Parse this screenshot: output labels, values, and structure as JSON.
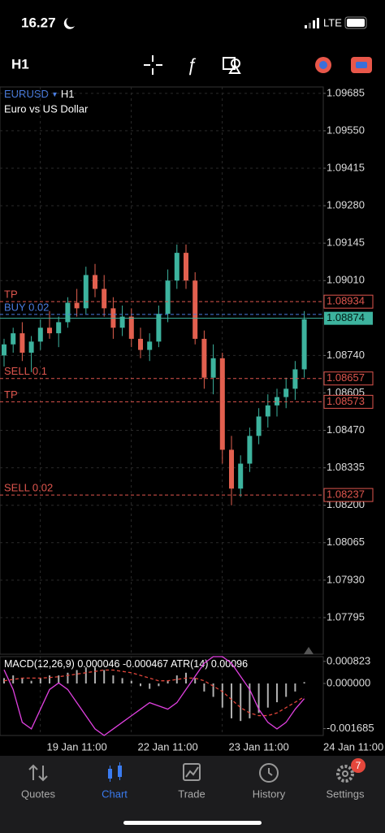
{
  "status": {
    "time": "16.27",
    "network": "LTE"
  },
  "toolbar": {
    "timeframe": "H1"
  },
  "chart_data": {
    "type": "candlestick",
    "symbol": "EURUSD",
    "timeframe": "H1",
    "description": "Euro vs US Dollar",
    "categories": [
      null,
      null,
      null,
      null,
      null,
      null,
      null,
      null,
      "19 Jan 11:00",
      null,
      null,
      null,
      null,
      null,
      null,
      null,
      null,
      null,
      "22 Jan 11:00",
      null,
      null,
      null,
      null,
      null,
      null,
      null,
      null,
      null,
      "23 Jan 11:00",
      null,
      null,
      null,
      null,
      null
    ],
    "x_end_label": "24 Jan 11:00",
    "open": [
      1.0874,
      1.0878,
      1.0882,
      1.0875,
      1.0879,
      1.0884,
      1.0882,
      1.0886,
      1.0893,
      1.0891,
      1.0903,
      1.0898,
      1.0891,
      1.0884,
      1.0888,
      1.088,
      1.0876,
      1.0879,
      1.0889,
      1.0901,
      1.0911,
      1.0901,
      1.088,
      1.0866,
      1.0873,
      1.084,
      1.0826,
      1.0835,
      1.0845,
      1.0852,
      1.0856,
      1.0859,
      1.0862,
      1.0869
    ],
    "high": [
      1.088,
      1.0884,
      1.0886,
      1.0881,
      1.0887,
      1.089,
      1.0888,
      1.0895,
      1.0898,
      1.0906,
      1.0907,
      1.0903,
      1.0895,
      1.0892,
      1.0891,
      1.0884,
      1.0882,
      1.0892,
      1.0905,
      1.0914,
      1.0914,
      1.0904,
      1.0883,
      1.0878,
      1.0875,
      1.0845,
      1.0838,
      1.0848,
      1.0855,
      1.086,
      1.0862,
      1.0866,
      1.0872,
      1.089
    ],
    "low": [
      1.087,
      1.0875,
      1.0872,
      1.0868,
      1.0876,
      1.088,
      1.0877,
      1.0884,
      1.0888,
      1.0889,
      1.0895,
      1.0888,
      1.088,
      1.0881,
      1.0877,
      1.0873,
      1.0872,
      1.0877,
      1.0886,
      1.0898,
      1.0898,
      1.0878,
      1.0862,
      1.086,
      1.0835,
      1.082,
      1.0823,
      1.0832,
      1.0842,
      1.0848,
      1.0852,
      1.0855,
      1.0858,
      1.0866
    ],
    "close": [
      1.0878,
      1.0882,
      1.0875,
      1.0879,
      1.0884,
      1.0882,
      1.0886,
      1.0893,
      1.0891,
      1.0903,
      1.0898,
      1.0891,
      1.0884,
      1.0888,
      1.088,
      1.0876,
      1.0879,
      1.0889,
      1.0901,
      1.0911,
      1.0901,
      1.088,
      1.0866,
      1.0873,
      1.084,
      1.0826,
      1.0835,
      1.0845,
      1.0852,
      1.0856,
      1.0859,
      1.0862,
      1.0869,
      1.0887
    ],
    "up_color": "#3db39e",
    "down_color": "#e2604f",
    "ylim": [
      1.07663,
      1.09708
    ],
    "yticks": [
      1.09685,
      {
        "value": 1.0955,
        "label": "1.09550"
      },
      1.09415,
      {
        "value": 1.0928,
        "label": "1.09280"
      },
      1.09145,
      {
        "value": 1.0901,
        "label": "1.09010"
      },
      {
        "value": 1.0874,
        "label": "1.08740"
      },
      1.08605,
      {
        "value": 1.0847,
        "label": "1.08470"
      },
      1.08335,
      {
        "value": 1.082,
        "label": "1.08200"
      },
      1.08065,
      {
        "value": 1.0793,
        "label": "1.07930"
      },
      1.07795
    ],
    "grid": true,
    "bid": 1.08874,
    "bid_color": "#3db39e",
    "levels": [
      {
        "name": "TP",
        "price": 1.08934,
        "color": "#e0564e",
        "show_price": true
      },
      {
        "name": "BUY 0.02",
        "price": 1.08888,
        "color": "#4a7de0",
        "show_price": false
      },
      {
        "name": "SELL 0.1",
        "price": 1.08657,
        "color": "#e0564e",
        "show_price": true
      },
      {
        "name": "TP",
        "price": 1.08573,
        "color": "#e0564e",
        "show_price": true
      },
      {
        "name": "SELL 0.02",
        "price": 1.08237,
        "color": "#e0564e",
        "show_price": true
      }
    ],
    "macd": {
      "label": "MACD(12,26,9)",
      "macd_value": 4.6e-05,
      "signal_value": -0.000467,
      "atr_label": "ATR(14)",
      "atr_value": 0.00096,
      "ylim": [
        -0.00194,
        0.001
      ],
      "yticks": [
        0.000823,
        {
          "value": 0,
          "label": "0.000000"
        },
        -0.001685
      ],
      "histogram": [
        0.0002,
        0.0003,
        0.0002,
        0.0001,
        0.0002,
        0.0003,
        0.0003,
        0.0004,
        0.0005,
        0.0006,
        0.0006,
        0.0005,
        0.0003,
        0.0002,
        0.0001,
        -0.0001,
        -0.0002,
        -0.0001,
        0.0001,
        0.0003,
        0.0004,
        0.0002,
        -0.0003,
        -0.0005,
        -0.0009,
        -0.0013,
        -0.0014,
        -0.0013,
        -0.0011,
        -0.0009,
        -0.0007,
        -0.0005,
        -0.0003,
        5e-05
      ],
      "signal": [
        0.0001,
        0.00015,
        0.0002,
        0.0002,
        0.0002,
        0.00022,
        0.00025,
        0.0003,
        0.00035,
        0.0004,
        0.00045,
        0.0005,
        0.0005,
        0.00045,
        0.0004,
        0.0003,
        0.0002,
        0.0001,
        0.0001,
        0.00015,
        0.0002,
        0.0002,
        0.0001,
        -0.0001,
        -0.0003,
        -0.0006,
        -0.0009,
        -0.0011,
        -0.0012,
        -0.0012,
        -0.0011,
        -0.0009,
        -0.0007,
        -0.0005
      ],
      "atr": [
        0.0014,
        0.0011,
        0.0006,
        0.0005,
        0.0008,
        0.0011,
        0.0012,
        0.0011,
        0.0009,
        0.0007,
        0.0005,
        0.0004,
        0.0005,
        0.0006,
        0.0007,
        0.0008,
        0.0009,
        0.00085,
        0.0008,
        0.0009,
        0.0011,
        0.0013,
        0.0015,
        0.0016,
        0.0016,
        0.0015,
        0.0013,
        0.0011,
        0.0008,
        0.0006,
        0.0005,
        0.0006,
        0.0008,
        0.00096
      ],
      "atr_ylim": [
        0.0004,
        0.0016
      ],
      "histogram_color": "#b0b0b0",
      "signal_color": "#e0453a",
      "atr_color": "#e040e0"
    }
  },
  "tabs": [
    {
      "label": "Quotes"
    },
    {
      "label": "Chart",
      "active": true
    },
    {
      "label": "Trade"
    },
    {
      "label": "History"
    },
    {
      "label": "Settings",
      "badge": "7"
    }
  ]
}
